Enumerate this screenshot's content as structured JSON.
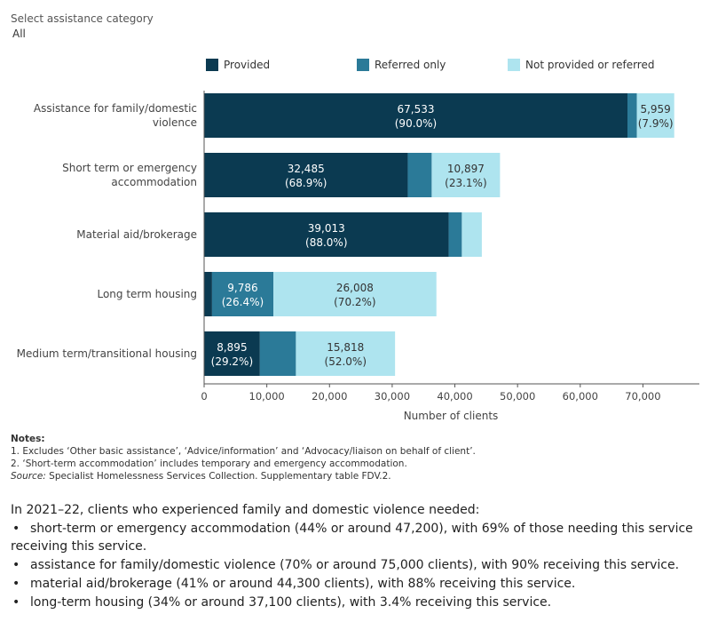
{
  "filter": {
    "label": "Select assistance category",
    "value": "All"
  },
  "legend": [
    {
      "label": "Provided",
      "color": "#0b3a51"
    },
    {
      "label": "Referred only",
      "color": "#2b7a98"
    },
    {
      "label": "Not provided or referred",
      "color": "#aee4ef"
    }
  ],
  "chart_data": {
    "type": "bar",
    "orientation": "horizontal",
    "stacked": true,
    "categories": [
      "Assistance for family/domestic violence",
      "Short term or emergency accommodation",
      "Material aid/brokerage",
      "Long term housing",
      "Medium term/transitional housing"
    ],
    "series": [
      {
        "name": "Provided",
        "color": "#0b3a51",
        "values": [
          67533,
          32485,
          39013,
          1261,
          8895
        ],
        "labels": [
          [
            "67,533",
            "(90.0%)"
          ],
          [
            "32,485",
            "(68.9%)"
          ],
          [
            "39,013",
            "(88.0%)"
          ],
          null,
          [
            "8,895",
            "(29.2%)"
          ]
        ]
      },
      {
        "name": "Referred only",
        "color": "#2b7a98",
        "values": [
          1500,
          3818,
          2100,
          9786,
          5745
        ],
        "labels": [
          null,
          null,
          null,
          [
            "9,786",
            "(26.4%)"
          ],
          null
        ]
      },
      {
        "name": "Not provided or referred",
        "color": "#aee4ef",
        "values": [
          5959,
          10897,
          3187,
          26008,
          15818
        ],
        "labels": [
          [
            "5,959",
            "(7.9%)"
          ],
          [
            "10,897",
            "(23.1%)"
          ],
          null,
          [
            "26,008",
            "(70.2%)"
          ],
          [
            "15,818",
            "(52.0%)"
          ]
        ]
      }
    ],
    "xlim": [
      0,
      79000
    ],
    "xticks": [
      0,
      10000,
      20000,
      30000,
      40000,
      50000,
      60000,
      70000
    ],
    "xtick_labels": [
      "0",
      "10,000",
      "20,000",
      "30,000",
      "40,000",
      "50,000",
      "60,000",
      "70,000"
    ],
    "xlabel": "Number of clients",
    "ylabel": "",
    "grid": false,
    "legend_position": "top"
  },
  "notes": {
    "title": "Notes:",
    "lines": [
      "1. Excludes ‘Other basic assistance’, ‘Advice/information’ and ‘Advocacy/liaison on behalf of client’.",
      "2. ‘Short-term accommodation’ includes temporary and emergency accommodation."
    ],
    "source_label": "Source:",
    "source_text": " Specialist Homelessness Services Collection. Supplementary table FDV.2."
  },
  "summary": {
    "intro": "In 2021–22, clients who experienced family and domestic violence needed:",
    "bullets": [
      "short-term or emergency accommodation (44% or around 47,200), with 69% of those needing this service receiving this service.",
      "assistance for family/domestic violence (70% or around  75,000 clients), with 90% receiving this service.",
      "material aid/brokerage (41% or around 44,300 clients), with 88% receiving this service.",
      "long-term housing (34% or around  37,100 clients), with 3.4% receiving this service."
    ]
  }
}
